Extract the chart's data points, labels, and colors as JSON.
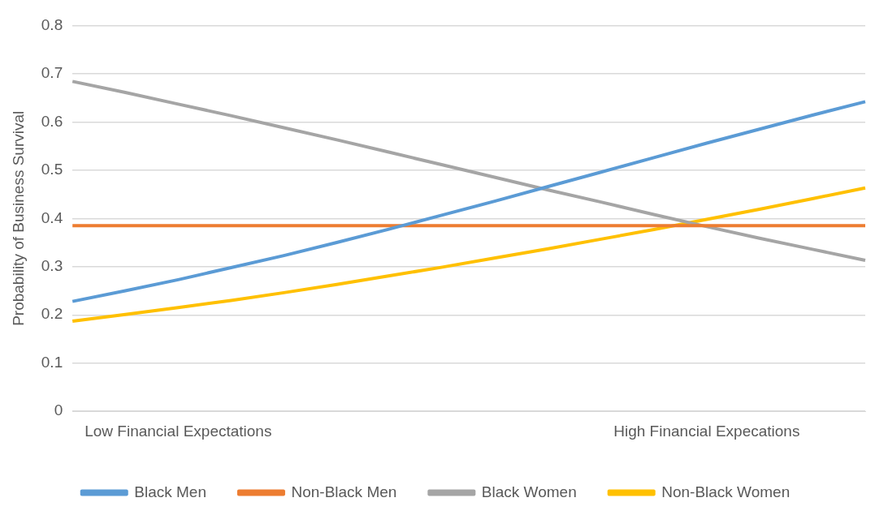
{
  "chart_data": {
    "type": "line",
    "ylabel": "Probability of Business Survival",
    "categories": [
      null,
      null,
      "Low Financial Expectations",
      null,
      null,
      null,
      null,
      null,
      null,
      null,
      null,
      null,
      "High Financial Expecations",
      null,
      null,
      null
    ],
    "series": [
      {
        "name": "Black Men",
        "color": "#5b9bd5",
        "values": [
          0.228,
          0.25,
          0.273,
          0.298,
          0.323,
          0.35,
          0.378,
          0.407,
          0.436,
          0.466,
          0.496,
          0.526,
          0.556,
          0.585,
          0.614,
          0.642
        ]
      },
      {
        "name": "Non-Black Men",
        "color": "#ed7d31",
        "values": [
          0.385,
          0.385,
          0.385,
          0.385,
          0.385,
          0.385,
          0.385,
          0.385,
          0.385,
          0.385,
          0.385,
          0.385,
          0.385,
          0.385,
          0.385,
          0.385
        ]
      },
      {
        "name": "Black Women",
        "color": "#a5a5a5",
        "values": [
          0.684,
          0.661,
          0.637,
          0.613,
          0.588,
          0.563,
          0.537,
          0.511,
          0.485,
          0.459,
          0.434,
          0.408,
          0.383,
          0.359,
          0.336,
          0.313
        ]
      },
      {
        "name": "Non-Black Women",
        "color": "#ffc000",
        "values": [
          0.187,
          0.201,
          0.215,
          0.23,
          0.246,
          0.263,
          0.281,
          0.299,
          0.318,
          0.337,
          0.357,
          0.377,
          0.398,
          0.419,
          0.441,
          0.463
        ]
      }
    ],
    "ylim": [
      0,
      0.8
    ],
    "yticks": [
      0,
      0.1,
      0.2,
      0.3,
      0.4,
      0.5,
      0.6,
      0.7,
      0.8
    ],
    "grid": "y",
    "legend": "bottom",
    "marker": "none",
    "line_style": "solid"
  }
}
